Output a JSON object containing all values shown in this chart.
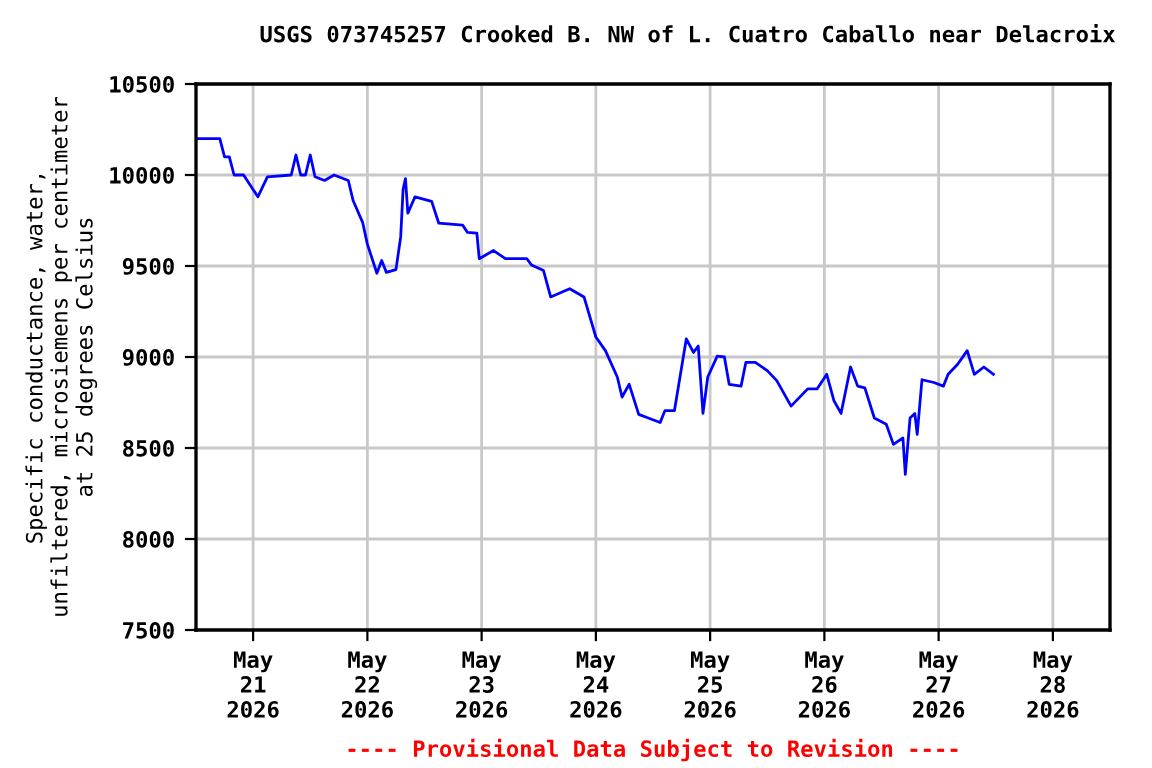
{
  "chart_data": {
    "type": "line",
    "title": "USGS 073745257 Crooked B. NW of L. Cuatro Caballo near Delacroix",
    "ylabel": "Specific conductance, water,\nunfiltered, microsiemens per centimeter\nat 25 degrees Celsius",
    "annotations": [
      "---- Provisional Data Subject to Revision ----"
    ],
    "x": [
      "2026-05-20T12:00",
      "2026-05-20T17:00",
      "2026-05-20T18:00",
      "2026-05-20T19:00",
      "2026-05-20T20:00",
      "2026-05-20T22:00",
      "2026-05-21T01:00",
      "2026-05-21T03:00",
      "2026-05-21T08:00",
      "2026-05-21T09:00",
      "2026-05-21T10:00",
      "2026-05-21T11:00",
      "2026-05-21T12:00",
      "2026-05-21T13:00",
      "2026-05-21T15:00",
      "2026-05-21T17:00",
      "2026-05-21T20:00",
      "2026-05-21T21:00",
      "2026-05-21T23:00",
      "2026-05-22T00:00",
      "2026-05-22T02:00",
      "2026-05-22T03:00",
      "2026-05-22T04:00",
      "2026-05-22T06:00",
      "2026-05-22T07:00",
      "2026-05-22T07:30",
      "2026-05-22T08:00",
      "2026-05-22T08:30",
      "2026-05-22T10:00",
      "2026-05-22T13:30",
      "2026-05-22T15:00",
      "2026-05-22T20:00",
      "2026-05-22T21:00",
      "2026-05-22T23:00",
      "2026-05-22T23:30",
      "2026-05-23T02:30",
      "2026-05-23T05:00",
      "2026-05-23T09:30",
      "2026-05-23T10:30",
      "2026-05-23T13:00",
      "2026-05-23T14:30",
      "2026-05-23T18:30",
      "2026-05-23T21:30",
      "2026-05-24T00:00",
      "2026-05-24T02:00",
      "2026-05-24T04:30",
      "2026-05-24T05:30",
      "2026-05-24T07:00",
      "2026-05-24T09:00",
      "2026-05-24T11:00",
      "2026-05-24T13:30",
      "2026-05-24T14:30",
      "2026-05-24T16:30",
      "2026-05-24T19:00",
      "2026-05-24T20:30",
      "2026-05-24T21:30",
      "2026-05-24T22:30",
      "2026-05-24T23:30",
      "2026-05-25T01:30",
      "2026-05-25T03:00",
      "2026-05-25T04:00",
      "2026-05-25T06:30",
      "2026-05-25T07:30",
      "2026-05-25T09:30",
      "2026-05-25T12:00",
      "2026-05-25T14:00",
      "2026-05-25T17:00",
      "2026-05-25T20:30",
      "2026-05-25T22:30",
      "2026-05-26T00:30",
      "2026-05-26T02:00",
      "2026-05-26T03:30",
      "2026-05-26T05:30",
      "2026-05-26T07:00",
      "2026-05-26T08:30",
      "2026-05-26T10:30",
      "2026-05-26T13:00",
      "2026-05-26T14:30",
      "2026-05-26T16:30",
      "2026-05-26T17:00",
      "2026-05-26T18:00",
      "2026-05-26T19:00",
      "2026-05-26T19:30",
      "2026-05-26T20:30",
      "2026-05-26T23:00",
      "2026-05-27T01:00",
      "2026-05-27T02:00",
      "2026-05-27T04:00",
      "2026-05-27T06:00",
      "2026-05-27T07:30",
      "2026-05-27T09:30",
      "2026-05-27T11:30"
    ],
    "series": [
      {
        "color": "#0000ff",
        "values": [
          10200,
          10200,
          10100,
          10100,
          10000,
          10000,
          9880,
          9990,
          10000,
          10110,
          10000,
          10000,
          10110,
          9990,
          9970,
          10000,
          9970,
          9860,
          9740,
          9620,
          9460,
          9530,
          9465,
          9480,
          9660,
          9920,
          9980,
          9790,
          9880,
          9855,
          9735,
          9725,
          9685,
          9680,
          9540,
          9585,
          9540,
          9540,
          9505,
          9475,
          9330,
          9375,
          9330,
          9110,
          9035,
          8890,
          8780,
          8850,
          8685,
          8665,
          8640,
          8705,
          8705,
          9100,
          9025,
          9060,
          8690,
          8890,
          9005,
          9000,
          8850,
          8840,
          8970,
          8970,
          8925,
          8870,
          8730,
          8825,
          8825,
          8905,
          8760,
          8690,
          8945,
          8840,
          8830,
          8665,
          8630,
          8520,
          8555,
          8355,
          8665,
          8690,
          8575,
          8875,
          8860,
          8840,
          8905,
          8960,
          9035,
          8905,
          8945,
          8905
        ]
      }
    ],
    "xlim": [
      "2026-05-20T12:00",
      "2026-05-28T12:00"
    ],
    "xticks": [
      {
        "value": "2026-05-21",
        "label": "May\n21\n2026"
      },
      {
        "value": "2026-05-22",
        "label": "May\n22\n2026"
      },
      {
        "value": "2026-05-23",
        "label": "May\n23\n2026"
      },
      {
        "value": "2026-05-24",
        "label": "May\n24\n2026"
      },
      {
        "value": "2026-05-25",
        "label": "May\n25\n2026"
      },
      {
        "value": "2026-05-26",
        "label": "May\n26\n2026"
      },
      {
        "value": "2026-05-27",
        "label": "May\n27\n2026"
      },
      {
        "value": "2026-05-28",
        "label": "May\n28\n2026"
      }
    ],
    "ylim": [
      7500,
      10500
    ],
    "yticks": [
      7500,
      8000,
      8500,
      9000,
      9500,
      10000,
      10500
    ],
    "grid": true,
    "legend": false,
    "marker": "none",
    "line_style": "solid"
  }
}
